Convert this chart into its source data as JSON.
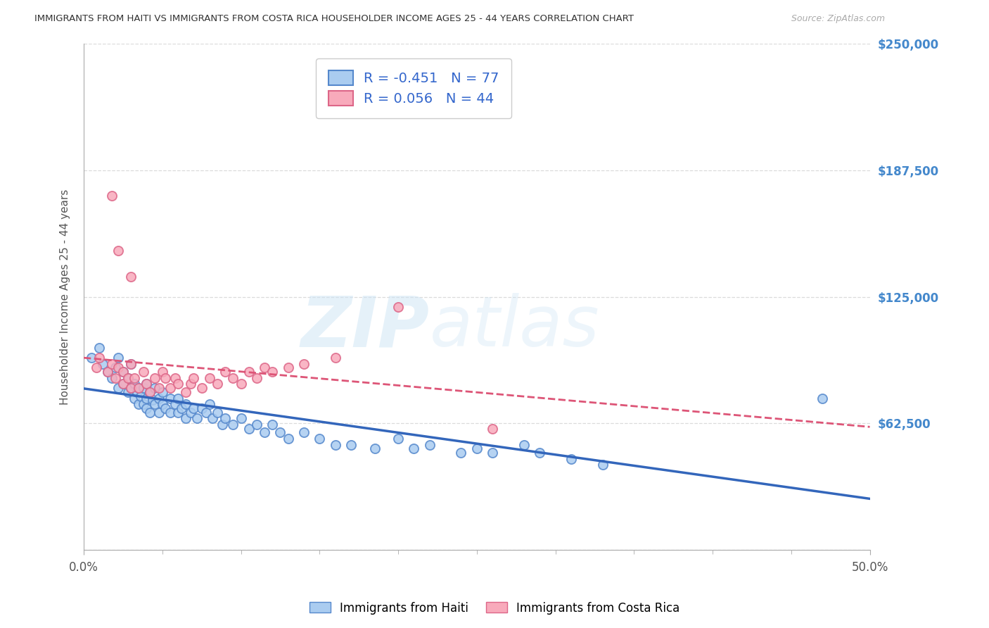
{
  "title": "IMMIGRANTS FROM HAITI VS IMMIGRANTS FROM COSTA RICA HOUSEHOLDER INCOME AGES 25 - 44 YEARS CORRELATION CHART",
  "source": "Source: ZipAtlas.com",
  "ylabel": "Householder Income Ages 25 - 44 years",
  "xlim": [
    0.0,
    0.5
  ],
  "ylim": [
    0,
    250000
  ],
  "xtick_positions": [
    0.0,
    0.5
  ],
  "xtick_labels": [
    "0.0%",
    "50.0%"
  ],
  "yticks": [
    0,
    62500,
    125000,
    187500,
    250000
  ],
  "ytick_labels": [
    "",
    "$62,500",
    "$125,000",
    "$187,500",
    "$250,000"
  ],
  "haiti_R": -0.451,
  "haiti_N": 77,
  "costa_rica_R": 0.056,
  "costa_rica_N": 44,
  "haiti_color": "#aaccf0",
  "haiti_edge_color": "#5588cc",
  "costa_rica_color": "#f8aabb",
  "costa_rica_edge_color": "#dd6688",
  "haiti_line_color": "#3366bb",
  "costa_rica_line_color": "#dd5577",
  "watermark_zip": "ZIP",
  "watermark_atlas": "atlas",
  "background_color": "#ffffff",
  "grid_color": "#cccccc",
  "haiti_x": [
    0.005,
    0.01,
    0.012,
    0.015,
    0.018,
    0.02,
    0.022,
    0.022,
    0.025,
    0.025,
    0.028,
    0.028,
    0.03,
    0.03,
    0.032,
    0.032,
    0.034,
    0.035,
    0.035,
    0.036,
    0.038,
    0.038,
    0.04,
    0.04,
    0.04,
    0.042,
    0.042,
    0.044,
    0.045,
    0.045,
    0.048,
    0.048,
    0.05,
    0.05,
    0.052,
    0.055,
    0.055,
    0.058,
    0.06,
    0.06,
    0.062,
    0.065,
    0.065,
    0.068,
    0.07,
    0.072,
    0.075,
    0.078,
    0.08,
    0.082,
    0.085,
    0.088,
    0.09,
    0.095,
    0.1,
    0.105,
    0.11,
    0.115,
    0.12,
    0.125,
    0.13,
    0.14,
    0.15,
    0.16,
    0.17,
    0.185,
    0.2,
    0.21,
    0.22,
    0.24,
    0.25,
    0.26,
    0.28,
    0.29,
    0.31,
    0.33,
    0.47
  ],
  "haiti_y": [
    95000,
    100000,
    92000,
    88000,
    85000,
    90000,
    80000,
    95000,
    82000,
    88000,
    78000,
    85000,
    80000,
    92000,
    75000,
    82000,
    78000,
    72000,
    80000,
    76000,
    72000,
    80000,
    75000,
    82000,
    70000,
    78000,
    68000,
    74000,
    80000,
    72000,
    68000,
    75000,
    72000,
    78000,
    70000,
    75000,
    68000,
    72000,
    68000,
    75000,
    70000,
    72000,
    65000,
    68000,
    70000,
    65000,
    70000,
    68000,
    72000,
    65000,
    68000,
    62000,
    65000,
    62000,
    65000,
    60000,
    62000,
    58000,
    62000,
    58000,
    55000,
    58000,
    55000,
    52000,
    52000,
    50000,
    55000,
    50000,
    52000,
    48000,
    50000,
    48000,
    52000,
    48000,
    45000,
    42000,
    75000
  ],
  "costa_rica_x": [
    0.008,
    0.01,
    0.015,
    0.018,
    0.02,
    0.022,
    0.025,
    0.025,
    0.028,
    0.03,
    0.03,
    0.032,
    0.035,
    0.038,
    0.04,
    0.042,
    0.045,
    0.048,
    0.05,
    0.052,
    0.055,
    0.058,
    0.06,
    0.065,
    0.068,
    0.07,
    0.075,
    0.08,
    0.085,
    0.09,
    0.095,
    0.1,
    0.105,
    0.11,
    0.115,
    0.12,
    0.13,
    0.14,
    0.16,
    0.2,
    0.018,
    0.022,
    0.03,
    0.26
  ],
  "costa_rica_y": [
    90000,
    95000,
    88000,
    92000,
    85000,
    90000,
    82000,
    88000,
    85000,
    92000,
    80000,
    85000,
    80000,
    88000,
    82000,
    78000,
    85000,
    80000,
    88000,
    85000,
    80000,
    85000,
    82000,
    78000,
    82000,
    85000,
    80000,
    85000,
    82000,
    88000,
    85000,
    82000,
    88000,
    85000,
    90000,
    88000,
    90000,
    92000,
    95000,
    120000,
    175000,
    148000,
    135000,
    60000
  ]
}
